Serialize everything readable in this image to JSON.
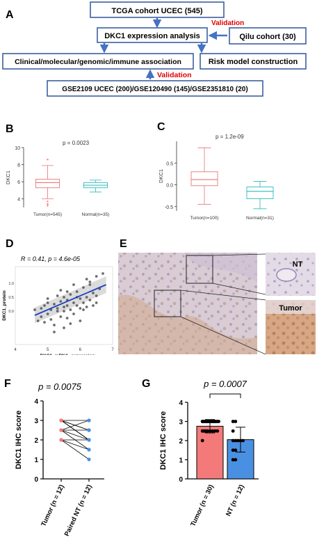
{
  "panels": {
    "A": {
      "letter": "A",
      "boxes": {
        "tcga": "TCGA cohort UCEC (545)",
        "dkc1": "DKC1 expression analysis",
        "qilu": "Qilu cohort (30)",
        "clinical": "Clinical/molecular/genomic/immune association",
        "risk": "Risk model construction",
        "gse": "GSE2109 UCEC (200)/GSE120490 (145)/GSE2351810 (20)"
      },
      "validation_labels": [
        "Validation",
        "Validation"
      ],
      "accent_color": "#e00000",
      "box_border_color": "#2f5597",
      "arrow_color": "#4472c4"
    },
    "B": {
      "letter": "B",
      "pvalue": "p = 0.0023",
      "colors": {
        "tumor": "#f08080",
        "normal": "#40c0c0"
      }
    },
    "C": {
      "letter": "C",
      "pvalue": "p = 1.2e-09",
      "colors": {
        "tumor": "#f08080",
        "normal": "#40c0c0"
      }
    },
    "D": {
      "letter": "D",
      "stat": "R = 0.41, p = 4.6e-05"
    },
    "E": {
      "letter": "E",
      "labels": {
        "nt": "NT",
        "tumor": "Tumor"
      }
    },
    "F": {
      "letter": "F",
      "pvalue": "p = 0.0075",
      "colors": {
        "tumor": "#f47a7a",
        "nt": "#4a90e2"
      }
    },
    "G": {
      "letter": "G",
      "pvalue": "p = 0.0007",
      "colors": {
        "tumor": "#f47a7a",
        "nt": "#4a90e2"
      }
    }
  },
  "chart_data": [
    {
      "panel": "B",
      "type": "box",
      "ylabel": "DKC1",
      "ylim": [
        3,
        10
      ],
      "yticks": [
        "4",
        "6",
        "8",
        "10"
      ],
      "categories": [
        "Tumor(n=545)",
        "Normal(n=35)"
      ],
      "boxes": [
        {
          "min": 4.0,
          "q1": 5.3,
          "median": 5.9,
          "q3": 6.3,
          "max": 7.9,
          "outliers": [
            8.6,
            3.7,
            3.4,
            3.2
          ]
        },
        {
          "min": 4.8,
          "q1": 5.3,
          "median": 5.6,
          "q3": 5.9,
          "max": 6.2,
          "outliers": []
        }
      ]
    },
    {
      "panel": "C",
      "type": "box",
      "ylabel": "DKC1",
      "ylim": [
        -0.6,
        1.0
      ],
      "yticks": [
        "-0.5",
        "0.0",
        "0.5"
      ],
      "categories": [
        "Tumor(n=100)",
        "Normal(n=31)"
      ],
      "boxes": [
        {
          "min": -0.45,
          "q1": -0.02,
          "median": 0.12,
          "q3": 0.3,
          "max": 0.85,
          "outliers": []
        },
        {
          "min": -0.55,
          "q1": -0.32,
          "median": -0.15,
          "q3": -0.05,
          "max": 0.08,
          "outliers": []
        }
      ]
    },
    {
      "panel": "D",
      "type": "scatter",
      "xlabel": "DKC1_mRNA_expression",
      "ylabel": "DKC1_protein",
      "xlim": [
        4,
        7
      ],
      "ylim": [
        -1.2,
        1.6
      ],
      "xticks": [
        "4",
        "5",
        "6",
        "7"
      ],
      "yticks": [
        "0.0",
        "0.5",
        "1.0"
      ],
      "points": [
        [
          4.6,
          0.05
        ],
        [
          4.7,
          -0.35
        ],
        [
          4.8,
          0.1
        ],
        [
          4.9,
          0.2
        ],
        [
          5.0,
          -0.1
        ],
        [
          5.0,
          0.45
        ],
        [
          5.1,
          -0.3
        ],
        [
          5.1,
          0.05
        ],
        [
          5.2,
          0.25
        ],
        [
          5.2,
          -0.5
        ],
        [
          5.3,
          0.1
        ],
        [
          5.3,
          0.55
        ],
        [
          5.4,
          -0.2
        ],
        [
          5.4,
          0.35
        ],
        [
          5.5,
          0.0
        ],
        [
          5.5,
          0.15
        ],
        [
          5.5,
          -0.6
        ],
        [
          5.6,
          0.4
        ],
        [
          5.6,
          0.2
        ],
        [
          5.6,
          -0.25
        ],
        [
          5.7,
          0.6
        ],
        [
          5.7,
          0.05
        ],
        [
          5.8,
          0.3
        ],
        [
          5.8,
          -0.1
        ],
        [
          5.9,
          0.5
        ],
        [
          5.9,
          0.2
        ],
        [
          5.9,
          0.7
        ],
        [
          6.0,
          0.1
        ],
        [
          6.0,
          0.45
        ],
        [
          6.0,
          -0.35
        ],
        [
          6.1,
          0.3
        ],
        [
          6.1,
          0.85
        ],
        [
          6.2,
          0.5
        ],
        [
          6.2,
          0.15
        ],
        [
          6.3,
          0.95
        ],
        [
          6.3,
          0.4
        ],
        [
          6.4,
          0.65
        ],
        [
          6.4,
          0.2
        ],
        [
          6.5,
          1.25
        ],
        [
          6.5,
          0.55
        ],
        [
          6.6,
          0.8
        ],
        [
          6.7,
          1.35
        ],
        [
          6.3,
          1.05
        ],
        [
          5.4,
          0.75
        ],
        [
          5.2,
          -0.75
        ],
        [
          4.9,
          -0.4
        ],
        [
          5.7,
          -0.45
        ],
        [
          6.1,
          0.05
        ],
        [
          5.8,
          0.95
        ],
        [
          5.3,
          0.0
        ],
        [
          6.5,
          0.3
        ],
        [
          5.6,
          0.7
        ],
        [
          4.8,
          -0.2
        ],
        [
          6.2,
          1.15
        ],
        [
          5.0,
          0.3
        ],
        [
          5.5,
          0.5
        ]
      ],
      "fit": {
        "x": [
          4.6,
          6.8
        ],
        "y": [
          -0.15,
          0.95
        ]
      }
    },
    {
      "panel": "F",
      "type": "line",
      "ylabel": "DKC1 IHC score",
      "ylim": [
        0,
        4
      ],
      "yticks": [
        "0",
        "1",
        "2",
        "3",
        "4"
      ],
      "categories": [
        "Tumor (n = 12)",
        "Paired NT (n = 12)"
      ],
      "pairs": [
        [
          3,
          3
        ],
        [
          3,
          2.5
        ],
        [
          3,
          2
        ],
        [
          2.5,
          3
        ],
        [
          2.5,
          2.5
        ],
        [
          2.5,
          1.5
        ],
        [
          2,
          2
        ],
        [
          2,
          1
        ],
        [
          3,
          2
        ],
        [
          2.5,
          2
        ],
        [
          3,
          2.5
        ],
        [
          2,
          1.5
        ]
      ]
    },
    {
      "panel": "G",
      "type": "bar",
      "ylabel": "DKC1 IHC score",
      "ylim": [
        0,
        4
      ],
      "yticks": [
        "0",
        "1",
        "2",
        "3",
        "4"
      ],
      "categories": [
        "Tumor (n = 30)",
        "NT (n = 12)"
      ],
      "values": [
        2.75,
        2.05
      ],
      "errors": [
        0.35,
        0.65
      ],
      "points": [
        [
          3,
          3,
          3,
          3,
          3,
          3,
          3,
          3,
          3,
          3,
          3,
          3,
          3,
          3,
          3,
          3,
          3,
          3,
          3,
          3,
          2.5,
          2.5,
          2.5,
          2.5,
          2.5,
          2.5,
          2.5,
          2.5,
          2.5,
          2
        ],
        [
          3,
          3,
          2.5,
          2,
          2,
          2,
          2,
          2,
          1.5,
          1.5,
          1,
          1
        ]
      ]
    }
  ]
}
